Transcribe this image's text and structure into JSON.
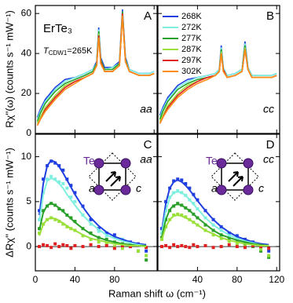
{
  "figure": {
    "xlabel": "Raman shift ω (cm⁻¹)",
    "ylabel_top": "Rχ''(ω) (counts s⁻¹ mW⁻¹)",
    "ylabel_bottom": "ΔRχ'' (counts s⁻¹ mW⁻¹)"
  },
  "chart_data": [
    {
      "type": "line",
      "panel_label": "A",
      "polarization": "aa",
      "compound": "ErTe₃",
      "tcdw": {
        "symbol": "T",
        "subscript": "CDW1",
        "text": "=265K"
      },
      "xlim": [
        0,
        123
      ],
      "xticks": [
        0,
        40,
        80,
        120
      ],
      "show_xtick_labels": false,
      "ylim": [
        0,
        64
      ],
      "yticks": [
        0,
        20,
        40,
        60
      ],
      "show_ytick_labels": true,
      "legend": false,
      "x": [
        2,
        5,
        10,
        15,
        20,
        30,
        40,
        50,
        58,
        62,
        64,
        66,
        70,
        78,
        85,
        88,
        91,
        95,
        105,
        115,
        120
      ],
      "series": [
        {
          "name": "268K",
          "color": "#1f3fe0",
          "values": [
            8,
            12,
            17,
            20,
            23,
            27,
            28,
            30,
            32,
            36,
            53,
            38,
            33,
            33,
            36,
            62,
            38,
            32,
            30,
            30,
            31
          ]
        },
        {
          "name": "272K",
          "color": "#7ff0e0",
          "values": [
            7,
            11,
            16,
            19,
            22,
            26,
            28,
            30,
            32,
            35,
            52,
            37,
            32,
            33,
            35,
            61,
            37,
            32,
            30,
            30,
            31
          ]
        },
        {
          "name": "277K",
          "color": "#2aa02a",
          "values": [
            6,
            10,
            15,
            18,
            21,
            25,
            27,
            29,
            31,
            35,
            51,
            37,
            32,
            32,
            35,
            61,
            37,
            31,
            29,
            29,
            30
          ]
        },
        {
          "name": "287K",
          "color": "#9adf3a",
          "values": [
            5,
            8,
            13,
            16,
            19,
            24,
            26,
            28,
            30,
            34,
            50,
            36,
            31,
            31,
            34,
            60,
            36,
            31,
            29,
            29,
            30
          ]
        },
        {
          "name": "297K",
          "color": "#e02020",
          "values": [
            4,
            7,
            12,
            15,
            18,
            23,
            26,
            28,
            30,
            34,
            49,
            36,
            31,
            31,
            34,
            60,
            36,
            31,
            29,
            29,
            30
          ]
        },
        {
          "name": "302K",
          "color": "#ff8c1a",
          "values": [
            4,
            7,
            11,
            14,
            17,
            22,
            25,
            28,
            30,
            34,
            48,
            35,
            31,
            31,
            34,
            59,
            36,
            31,
            29,
            29,
            30
          ]
        }
      ]
    },
    {
      "type": "line",
      "panel_label": "B",
      "polarization": "cc",
      "xlim": [
        0,
        123
      ],
      "xticks": [
        0,
        40,
        80,
        120
      ],
      "show_xtick_labels": false,
      "ylim": [
        0,
        64
      ],
      "yticks": [
        0,
        20,
        40,
        60
      ],
      "show_ytick_labels": false,
      "legend": true,
      "x": [
        2,
        5,
        10,
        15,
        20,
        30,
        40,
        50,
        58,
        62,
        64,
        66,
        70,
        78,
        85,
        88,
        91,
        95,
        105,
        115,
        120
      ],
      "series": [
        {
          "name": "268K",
          "color": "#1f3fe0",
          "values": [
            9,
            13,
            18,
            21,
            24,
            27,
            28,
            29,
            30,
            32,
            44,
            33,
            29,
            30,
            32,
            46,
            33,
            29,
            29,
            29,
            30
          ]
        },
        {
          "name": "272K",
          "color": "#7ff0e0",
          "values": [
            8,
            12,
            17,
            20,
            23,
            26,
            28,
            29,
            30,
            32,
            43,
            33,
            29,
            30,
            32,
            45,
            33,
            29,
            29,
            29,
            30
          ]
        },
        {
          "name": "277K",
          "color": "#2aa02a",
          "values": [
            7,
            11,
            16,
            19,
            22,
            25,
            27,
            28,
            29,
            31,
            42,
            32,
            28,
            29,
            31,
            44,
            32,
            28,
            28,
            28,
            29
          ]
        },
        {
          "name": "287K",
          "color": "#9adf3a",
          "values": [
            6,
            9,
            14,
            17,
            20,
            24,
            26,
            28,
            29,
            31,
            41,
            32,
            28,
            29,
            31,
            43,
            32,
            28,
            28,
            28,
            29
          ]
        },
        {
          "name": "297K",
          "color": "#e02020",
          "values": [
            5,
            8,
            13,
            16,
            19,
            23,
            26,
            28,
            29,
            31,
            40,
            32,
            28,
            29,
            31,
            42,
            32,
            28,
            28,
            28,
            29
          ]
        },
        {
          "name": "302K",
          "color": "#ff8c1a",
          "values": [
            5,
            8,
            12,
            15,
            18,
            22,
            25,
            27,
            29,
            31,
            40,
            31,
            28,
            29,
            31,
            42,
            32,
            28,
            28,
            28,
            29
          ]
        }
      ]
    },
    {
      "type": "scatter",
      "panel_label": "C",
      "polarization": "aa",
      "inset": {
        "atom": "Te",
        "a": "a",
        "c": "c"
      },
      "xlim": [
        0,
        123
      ],
      "xticks": [
        0,
        40,
        80
      ],
      "show_xtick_labels": true,
      "ylim": [
        -2.7,
        12.5
      ],
      "yticks": [
        0,
        5,
        10
      ],
      "show_ytick_labels": true,
      "legend": false,
      "x": [
        4,
        8,
        12,
        16,
        20,
        24,
        28,
        32,
        36,
        40,
        48,
        56,
        64,
        72,
        80,
        88,
        96,
        104,
        112
      ],
      "series": [
        {
          "name": "268K",
          "color": "#1f3fe0",
          "values": [
            4,
            7.5,
            9,
            9.5,
            9.3,
            9,
            8.5,
            7.5,
            6.8,
            6,
            4.5,
            3,
            2,
            1.5,
            1.3,
            0.8,
            0.5,
            0.3,
            -0.5
          ],
          "fit": [
            3.5,
            7,
            9,
            9.6,
            9.4,
            8.9,
            8.2,
            7.4,
            6.6,
            5.8,
            4.4,
            3.2,
            2.3,
            1.6,
            1.1,
            0.8,
            0.5,
            0.3,
            0.2
          ]
        },
        {
          "name": "272K",
          "color": "#7ff0e0",
          "values": [
            3,
            6,
            7.5,
            7.8,
            7.5,
            7.2,
            7,
            6.5,
            5.5,
            5,
            3.5,
            2.5,
            1.7,
            1.2,
            1,
            0.8,
            0.3,
            0.2,
            -1
          ],
          "fit": [
            2.8,
            5.8,
            7.3,
            7.6,
            7.4,
            7,
            6.5,
            5.8,
            5.2,
            4.6,
            3.5,
            2.6,
            1.9,
            1.3,
            0.9,
            0.6,
            0.4,
            0.2,
            0.1
          ]
        },
        {
          "name": "277K",
          "color": "#2aa02a",
          "values": [
            2,
            4,
            4.5,
            4.8,
            4.6,
            4.2,
            4,
            3.5,
            3.2,
            2.8,
            2,
            1.5,
            1,
            0.8,
            0.5,
            0.3,
            0,
            -0.5,
            -1.5
          ],
          "fit": [
            1.8,
            3.8,
            4.6,
            4.8,
            4.6,
            4.3,
            3.9,
            3.5,
            3.1,
            2.7,
            2,
            1.4,
            1,
            0.7,
            0.5,
            0.3,
            0.2,
            0.1,
            0.1
          ]
        },
        {
          "name": "287K",
          "color": "#9adf3a",
          "values": [
            1.5,
            2.5,
            3,
            3.2,
            3,
            2.8,
            2.5,
            2.2,
            2,
            1.8,
            1.2,
            0.8,
            0.5,
            0.3,
            0,
            -0.2,
            0.2,
            -0.5,
            -1
          ],
          "fit": [
            1.2,
            2.5,
            3,
            3.2,
            3.1,
            2.9,
            2.6,
            2.3,
            2,
            1.8,
            1.3,
            0.9,
            0.7,
            0.5,
            0.3,
            0.2,
            0.1,
            0.1,
            0
          ]
        },
        {
          "name": "297K",
          "color": "#e02020",
          "values": [
            0,
            0.2,
            0.1,
            -0.1,
            0.3,
            0,
            0.2,
            0.1,
            -0.2,
            0.1,
            0,
            0.2,
            0,
            0.1,
            -0.2,
            0.1,
            0,
            0.2,
            -0.1
          ]
        }
      ]
    },
    {
      "type": "scatter",
      "panel_label": "D",
      "polarization": "cc",
      "inset": {
        "atom": "Te",
        "a": "a",
        "c": "c"
      },
      "xlim": [
        0,
        123
      ],
      "xticks": [
        40,
        80,
        120
      ],
      "show_xtick_labels": true,
      "ylim": [
        -2.7,
        12.5
      ],
      "yticks": [
        0,
        5,
        10
      ],
      "show_ytick_labels": false,
      "legend": false,
      "x": [
        4,
        8,
        12,
        16,
        20,
        24,
        28,
        32,
        36,
        40,
        48,
        56,
        64,
        72,
        80,
        88,
        96,
        104,
        112
      ],
      "series": [
        {
          "name": "268K",
          "color": "#1f3fe0",
          "values": [
            2,
            5,
            6.5,
            7.3,
            7.5,
            7.4,
            7,
            6.5,
            5.8,
            5.2,
            4,
            3,
            2.2,
            1.5,
            1.2,
            0.8,
            0.5,
            0.2,
            -0.5
          ],
          "fit": [
            1.8,
            4.8,
            6.5,
            7.2,
            7.4,
            7.2,
            6.8,
            6.3,
            5.7,
            5.1,
            4,
            3,
            2.2,
            1.6,
            1.1,
            0.8,
            0.5,
            0.3,
            0.2
          ]
        },
        {
          "name": "272K",
          "color": "#7ff0e0",
          "values": [
            1.5,
            4,
            5.5,
            6,
            6.2,
            6,
            5.7,
            5.2,
            4.8,
            4.2,
            3.2,
            2.4,
            1.8,
            1.2,
            0.9,
            0.6,
            0.3,
            0,
            -1
          ],
          "fit": [
            1.5,
            4,
            5.4,
            6,
            6.1,
            6,
            5.7,
            5.2,
            4.7,
            4.2,
            3.2,
            2.4,
            1.8,
            1.3,
            0.9,
            0.6,
            0.4,
            0.2,
            0.1
          ]
        },
        {
          "name": "277K",
          "color": "#2aa02a",
          "values": [
            1,
            3,
            4,
            4.5,
            4.8,
            4.6,
            4.3,
            4,
            3.6,
            3.2,
            2.4,
            1.8,
            1.3,
            0.8,
            0.6,
            0.3,
            0,
            -0.5,
            -1.2
          ],
          "fit": [
            1.1,
            3,
            4.1,
            4.6,
            4.7,
            4.6,
            4.3,
            4,
            3.6,
            3.2,
            2.5,
            1.8,
            1.3,
            1,
            0.7,
            0.5,
            0.3,
            0.2,
            0.1
          ]
        },
        {
          "name": "287K",
          "color": "#9adf3a",
          "values": [
            0.8,
            2.2,
            3,
            3.5,
            3.6,
            3.5,
            3.3,
            3,
            2.7,
            2.4,
            1.8,
            1.3,
            0.9,
            0.6,
            0.3,
            0,
            0.3,
            -0.3,
            -1
          ],
          "fit": [
            0.8,
            2.2,
            3,
            3.4,
            3.5,
            3.4,
            3.2,
            3,
            2.7,
            2.4,
            1.8,
            1.4,
            1,
            0.7,
            0.5,
            0.3,
            0.2,
            0.1,
            0.1
          ]
        },
        {
          "name": "297K",
          "color": "#e02020",
          "values": [
            0,
            0.1,
            -0.1,
            0.2,
            0,
            0.1,
            0,
            -0.1,
            0.2,
            0,
            0.1,
            -0.1,
            0,
            0.2,
            0,
            -0.1,
            0.1,
            0,
            -0.2
          ]
        }
      ]
    }
  ]
}
